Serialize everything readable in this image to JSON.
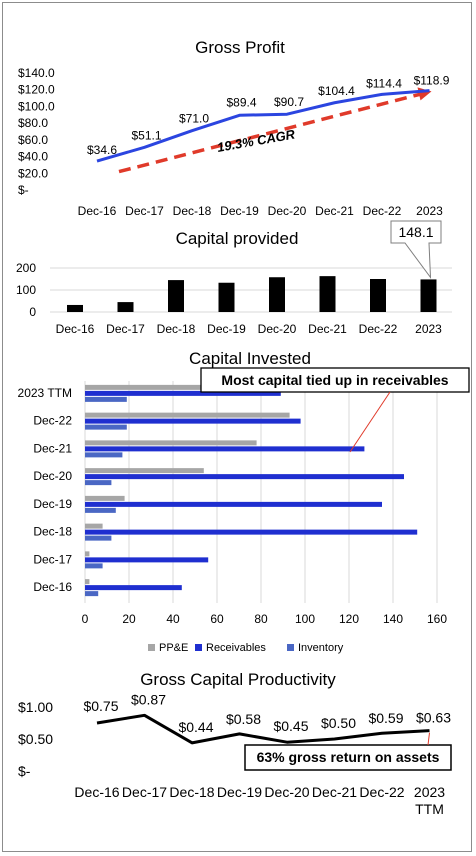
{
  "chart_data": [
    {
      "type": "line",
      "title": "Gross Profit",
      "categories": [
        "Dec-16",
        "Dec-17",
        "Dec-18",
        "Dec-19",
        "Dec-20",
        "Dec-21",
        "Dec-22",
        "2023"
      ],
      "series": [
        {
          "values": [
            34.6,
            51.1,
            71.0,
            89.4,
            90.7,
            104.4,
            114.4,
            118.9
          ],
          "labels": [
            "$34.6",
            "$51.1",
            "$71.0",
            "$89.4",
            "$90.7",
            "$104.4",
            "$114.4",
            "$118.9"
          ]
        }
      ],
      "y_ticks": [
        "$140.0",
        "$120.0",
        "$100.0",
        "$80.0",
        "$60.0",
        "$40.0",
        "$20.0",
        "$-"
      ],
      "ylim": [
        0,
        140
      ],
      "trend": {
        "label": "19.3% CAGR",
        "from": 22,
        "to": 118
      }
    },
    {
      "type": "bar",
      "title": "Capital provided",
      "categories": [
        "Dec-16",
        "Dec-17",
        "Dec-18",
        "Dec-19",
        "Dec-20",
        "Dec-21",
        "Dec-22",
        "2023"
      ],
      "values": [
        32,
        45,
        145,
        133,
        158,
        163,
        150,
        148.1
      ],
      "y_ticks": [
        "200",
        "100",
        "0"
      ],
      "ylim": [
        0,
        200
      ],
      "callout": "148.1"
    },
    {
      "type": "bar",
      "orientation": "horizontal",
      "title": "Capital Invested",
      "categories": [
        "2023 TTM",
        "Dec-22",
        "Dec-21",
        "Dec-20",
        "Dec-19",
        "Dec-18",
        "Dec-17",
        "Dec-16"
      ],
      "series": [
        {
          "name": "PP&E",
          "values": [
            96,
            93,
            78,
            54,
            18,
            8,
            2,
            2
          ]
        },
        {
          "name": "Receivables",
          "values": [
            89,
            98,
            127,
            145,
            135,
            151,
            56,
            44
          ]
        },
        {
          "name": "Inventory",
          "values": [
            19,
            19,
            17,
            12,
            14,
            12,
            8,
            6
          ]
        }
      ],
      "x_ticks": [
        "0",
        "20",
        "40",
        "60",
        "80",
        "100",
        "120",
        "140",
        "160"
      ],
      "xlim": [
        0,
        160
      ],
      "annotation": "Most capital tied up in receivables",
      "colors": {
        "PP&E": "#a6a6a6",
        "Receivables": "#1f2fd0",
        "Inventory": "#4a67c4"
      }
    },
    {
      "type": "line",
      "title": "Gross Capital Productivity",
      "categories": [
        "Dec-16",
        "Dec-17",
        "Dec-18",
        "Dec-19",
        "Dec-20",
        "Dec-21",
        "Dec-22",
        "2023 TTM"
      ],
      "series": [
        {
          "values": [
            0.75,
            0.87,
            0.44,
            0.58,
            0.45,
            0.5,
            0.59,
            0.63
          ],
          "labels": [
            "$0.75",
            "$0.87",
            "$0.44",
            "$0.58",
            "$0.45",
            "$0.50",
            "$0.59",
            "$0.63"
          ]
        }
      ],
      "y_ticks": [
        "$1.00",
        "$0.50",
        "$-"
      ],
      "ylim": [
        0,
        1.0
      ],
      "annotation": "63% gross return on assets"
    }
  ]
}
